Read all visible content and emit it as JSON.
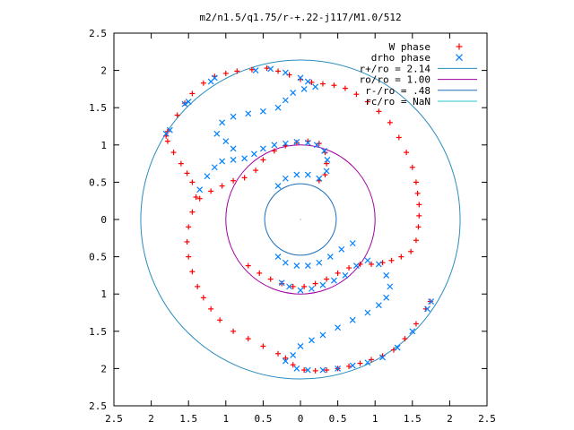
{
  "chart_data": {
    "type": "scatter",
    "title": "m2/n1.5/q1.75/r-+.22-j117/M1.0/512",
    "xlabel": "",
    "ylabel": "",
    "xlim": [
      -2.5,
      2.5
    ],
    "ylim": [
      -2.5,
      2.5
    ],
    "x_ticks": [
      "2.5",
      "2",
      "1.5",
      "1",
      "0.5",
      "0",
      "0.5",
      "1",
      "1.5",
      "2",
      "2.5"
    ],
    "y_ticks": [
      "2.5",
      "2",
      "1.5",
      "1",
      "0.5",
      "0",
      "0.5",
      "1",
      "1.5",
      "2",
      "2.5"
    ],
    "grid": false,
    "legend_position": "top-right",
    "series": [
      {
        "name": "W phase",
        "marker": "plus",
        "color": "#ff0000",
        "points": [
          [
            -0.7,
            -0.62
          ],
          [
            -0.55,
            -0.72
          ],
          [
            -0.4,
            -0.8
          ],
          [
            -0.25,
            -0.86
          ],
          [
            -0.1,
            -0.9
          ],
          [
            0.05,
            -0.9
          ],
          [
            0.2,
            -0.86
          ],
          [
            0.35,
            -0.8
          ],
          [
            0.5,
            -0.72
          ],
          [
            0.65,
            -0.65
          ],
          [
            0.8,
            -0.6
          ],
          [
            0.95,
            -0.6
          ],
          [
            1.1,
            -0.58
          ],
          [
            1.22,
            -0.55
          ],
          [
            1.35,
            -0.5
          ],
          [
            1.48,
            -0.43
          ],
          [
            1.55,
            -0.28
          ],
          [
            1.58,
            -0.1
          ],
          [
            1.59,
            0.05
          ],
          [
            1.59,
            0.2
          ],
          [
            1.57,
            0.35
          ],
          [
            1.55,
            0.5
          ],
          [
            1.5,
            0.7
          ],
          [
            1.42,
            0.9
          ],
          [
            1.32,
            1.1
          ],
          [
            1.2,
            1.3
          ],
          [
            1.05,
            1.45
          ],
          [
            0.9,
            1.58
          ],
          [
            0.75,
            1.68
          ],
          [
            0.6,
            1.76
          ],
          [
            0.45,
            1.8
          ],
          [
            0.3,
            1.82
          ],
          [
            0.15,
            1.84
          ],
          [
            0.0,
            1.88
          ],
          [
            -0.15,
            1.94
          ],
          [
            -0.3,
            1.99
          ],
          [
            -0.45,
            2.03
          ],
          [
            -0.65,
            2.01
          ],
          [
            -0.85,
            1.99
          ],
          [
            -1.0,
            1.96
          ],
          [
            -1.15,
            1.92
          ],
          [
            -1.3,
            1.83
          ],
          [
            -1.45,
            1.69
          ],
          [
            -1.55,
            1.56
          ],
          [
            -1.65,
            1.4
          ],
          [
            -1.78,
            1.18
          ],
          [
            -1.8,
            1.12
          ],
          [
            -1.78,
            1.05
          ],
          [
            -1.7,
            0.9
          ],
          [
            -1.6,
            0.75
          ],
          [
            -1.52,
            0.62
          ],
          [
            -1.45,
            0.5
          ],
          [
            -1.4,
            0.3
          ],
          [
            -1.45,
            0.1
          ],
          [
            -1.5,
            -0.1
          ],
          [
            -1.52,
            -0.3
          ],
          [
            -1.5,
            -0.5
          ],
          [
            -1.45,
            -0.7
          ],
          [
            -1.38,
            -0.9
          ],
          [
            -1.3,
            -1.05
          ],
          [
            -1.2,
            -1.2
          ],
          [
            -1.08,
            -1.35
          ],
          [
            -0.9,
            -1.5
          ],
          [
            -0.7,
            -1.6
          ],
          [
            -0.5,
            -1.7
          ],
          [
            -0.3,
            -1.8
          ],
          [
            -0.2,
            -1.86
          ],
          [
            -0.1,
            -1.95
          ],
          [
            0.05,
            -2.02
          ],
          [
            0.2,
            -2.03
          ],
          [
            0.35,
            -2.02
          ],
          [
            0.5,
            -2.0
          ],
          [
            0.65,
            -1.97
          ],
          [
            0.8,
            -1.93
          ],
          [
            0.95,
            -1.88
          ],
          [
            1.1,
            -1.83
          ],
          [
            1.25,
            -1.75
          ],
          [
            1.4,
            -1.6
          ],
          [
            1.55,
            -1.4
          ],
          [
            1.68,
            -1.2
          ],
          [
            1.74,
            -1.1
          ],
          [
            -1.35,
            0.28
          ],
          [
            -1.2,
            0.38
          ],
          [
            -1.05,
            0.45
          ],
          [
            -0.9,
            0.52
          ],
          [
            -0.75,
            0.56
          ],
          [
            -0.6,
            0.66
          ],
          [
            -0.5,
            0.8
          ],
          [
            -0.35,
            0.92
          ],
          [
            -0.2,
            0.99
          ],
          [
            -0.05,
            1.03
          ],
          [
            0.1,
            1.05
          ],
          [
            0.25,
            1.02
          ],
          [
            0.33,
            0.9
          ],
          [
            0.35,
            0.75
          ],
          [
            0.33,
            0.6
          ],
          [
            0.25,
            0.52
          ]
        ]
      },
      {
        "name": "drho phase",
        "marker": "cross",
        "color": "#0080ff",
        "points": [
          [
            -1.35,
            0.4
          ],
          [
            -1.25,
            0.58
          ],
          [
            -1.15,
            0.7
          ],
          [
            -1.05,
            0.78
          ],
          [
            -0.9,
            0.8
          ],
          [
            -0.75,
            0.82
          ],
          [
            -0.62,
            0.88
          ],
          [
            -0.5,
            0.95
          ],
          [
            -0.35,
            1.0
          ],
          [
            -0.2,
            1.02
          ],
          [
            -0.05,
            1.04
          ],
          [
            0.1,
            1.03
          ],
          [
            0.22,
            1.0
          ],
          [
            0.32,
            0.92
          ],
          [
            0.36,
            0.8
          ],
          [
            0.35,
            0.65
          ],
          [
            0.25,
            0.55
          ],
          [
            -0.3,
            0.45
          ],
          [
            -0.2,
            0.55
          ],
          [
            -0.05,
            0.6
          ],
          [
            0.1,
            0.6
          ],
          [
            0.25,
            0.55
          ],
          [
            -0.9,
            0.95
          ],
          [
            -1.0,
            1.05
          ],
          [
            -1.12,
            1.15
          ],
          [
            -1.05,
            1.3
          ],
          [
            -0.9,
            1.38
          ],
          [
            -0.7,
            1.42
          ],
          [
            -0.5,
            1.45
          ],
          [
            -0.3,
            1.5
          ],
          [
            -0.2,
            1.6
          ],
          [
            -0.1,
            1.7
          ],
          [
            0.05,
            1.75
          ],
          [
            0.2,
            1.78
          ],
          [
            -1.8,
            1.15
          ],
          [
            -1.75,
            1.2
          ],
          [
            -1.55,
            1.55
          ],
          [
            -1.5,
            1.58
          ],
          [
            -1.2,
            1.85
          ],
          [
            -1.15,
            1.9
          ],
          [
            -0.6,
            2.0
          ],
          [
            -0.4,
            2.02
          ],
          [
            -0.2,
            1.97
          ],
          [
            0.0,
            1.9
          ],
          [
            0.1,
            1.85
          ],
          [
            0.7,
            -0.32
          ],
          [
            0.55,
            -0.4
          ],
          [
            0.4,
            -0.5
          ],
          [
            0.25,
            -0.58
          ],
          [
            0.1,
            -0.62
          ],
          [
            -0.05,
            -0.62
          ],
          [
            -0.2,
            -0.58
          ],
          [
            -0.3,
            -0.5
          ],
          [
            -0.25,
            -0.85
          ],
          [
            -0.15,
            -0.9
          ],
          [
            0.0,
            -0.95
          ],
          [
            0.15,
            -0.93
          ],
          [
            0.3,
            -0.88
          ],
          [
            0.45,
            -0.82
          ],
          [
            0.6,
            -0.75
          ],
          [
            0.75,
            -0.62
          ],
          [
            0.9,
            -0.55
          ],
          [
            1.05,
            -0.6
          ],
          [
            1.15,
            -0.75
          ],
          [
            1.2,
            -0.9
          ],
          [
            1.15,
            -1.05
          ],
          [
            1.05,
            -1.15
          ],
          [
            0.9,
            -1.25
          ],
          [
            0.7,
            -1.35
          ],
          [
            0.5,
            -1.45
          ],
          [
            0.3,
            -1.55
          ],
          [
            0.15,
            -1.62
          ],
          [
            0.0,
            -1.7
          ],
          [
            -0.1,
            -1.82
          ],
          [
            -0.2,
            -1.9
          ],
          [
            -0.05,
            -2.0
          ],
          [
            0.1,
            -2.02
          ],
          [
            0.3,
            -2.02
          ],
          [
            0.5,
            -2.0
          ],
          [
            0.7,
            -1.96
          ],
          [
            0.9,
            -1.92
          ],
          [
            1.1,
            -1.85
          ],
          [
            1.3,
            -1.72
          ],
          [
            1.5,
            -1.5
          ],
          [
            1.7,
            -1.2
          ],
          [
            1.75,
            -1.1
          ]
        ]
      }
    ],
    "circles": [
      {
        "name": "r+/ro = 2.14",
        "radius": 2.14,
        "color": "#2a8cbf"
      },
      {
        "name": "ro/ro = 1.00",
        "radius": 1.0,
        "color": "#a000a0"
      },
      {
        "name": "r-/ro = .48",
        "radius": 0.48,
        "color": "#1d6fb8"
      },
      {
        "name": "rc/ro = NaN",
        "radius": null,
        "color": "#2ac8c8"
      }
    ]
  }
}
